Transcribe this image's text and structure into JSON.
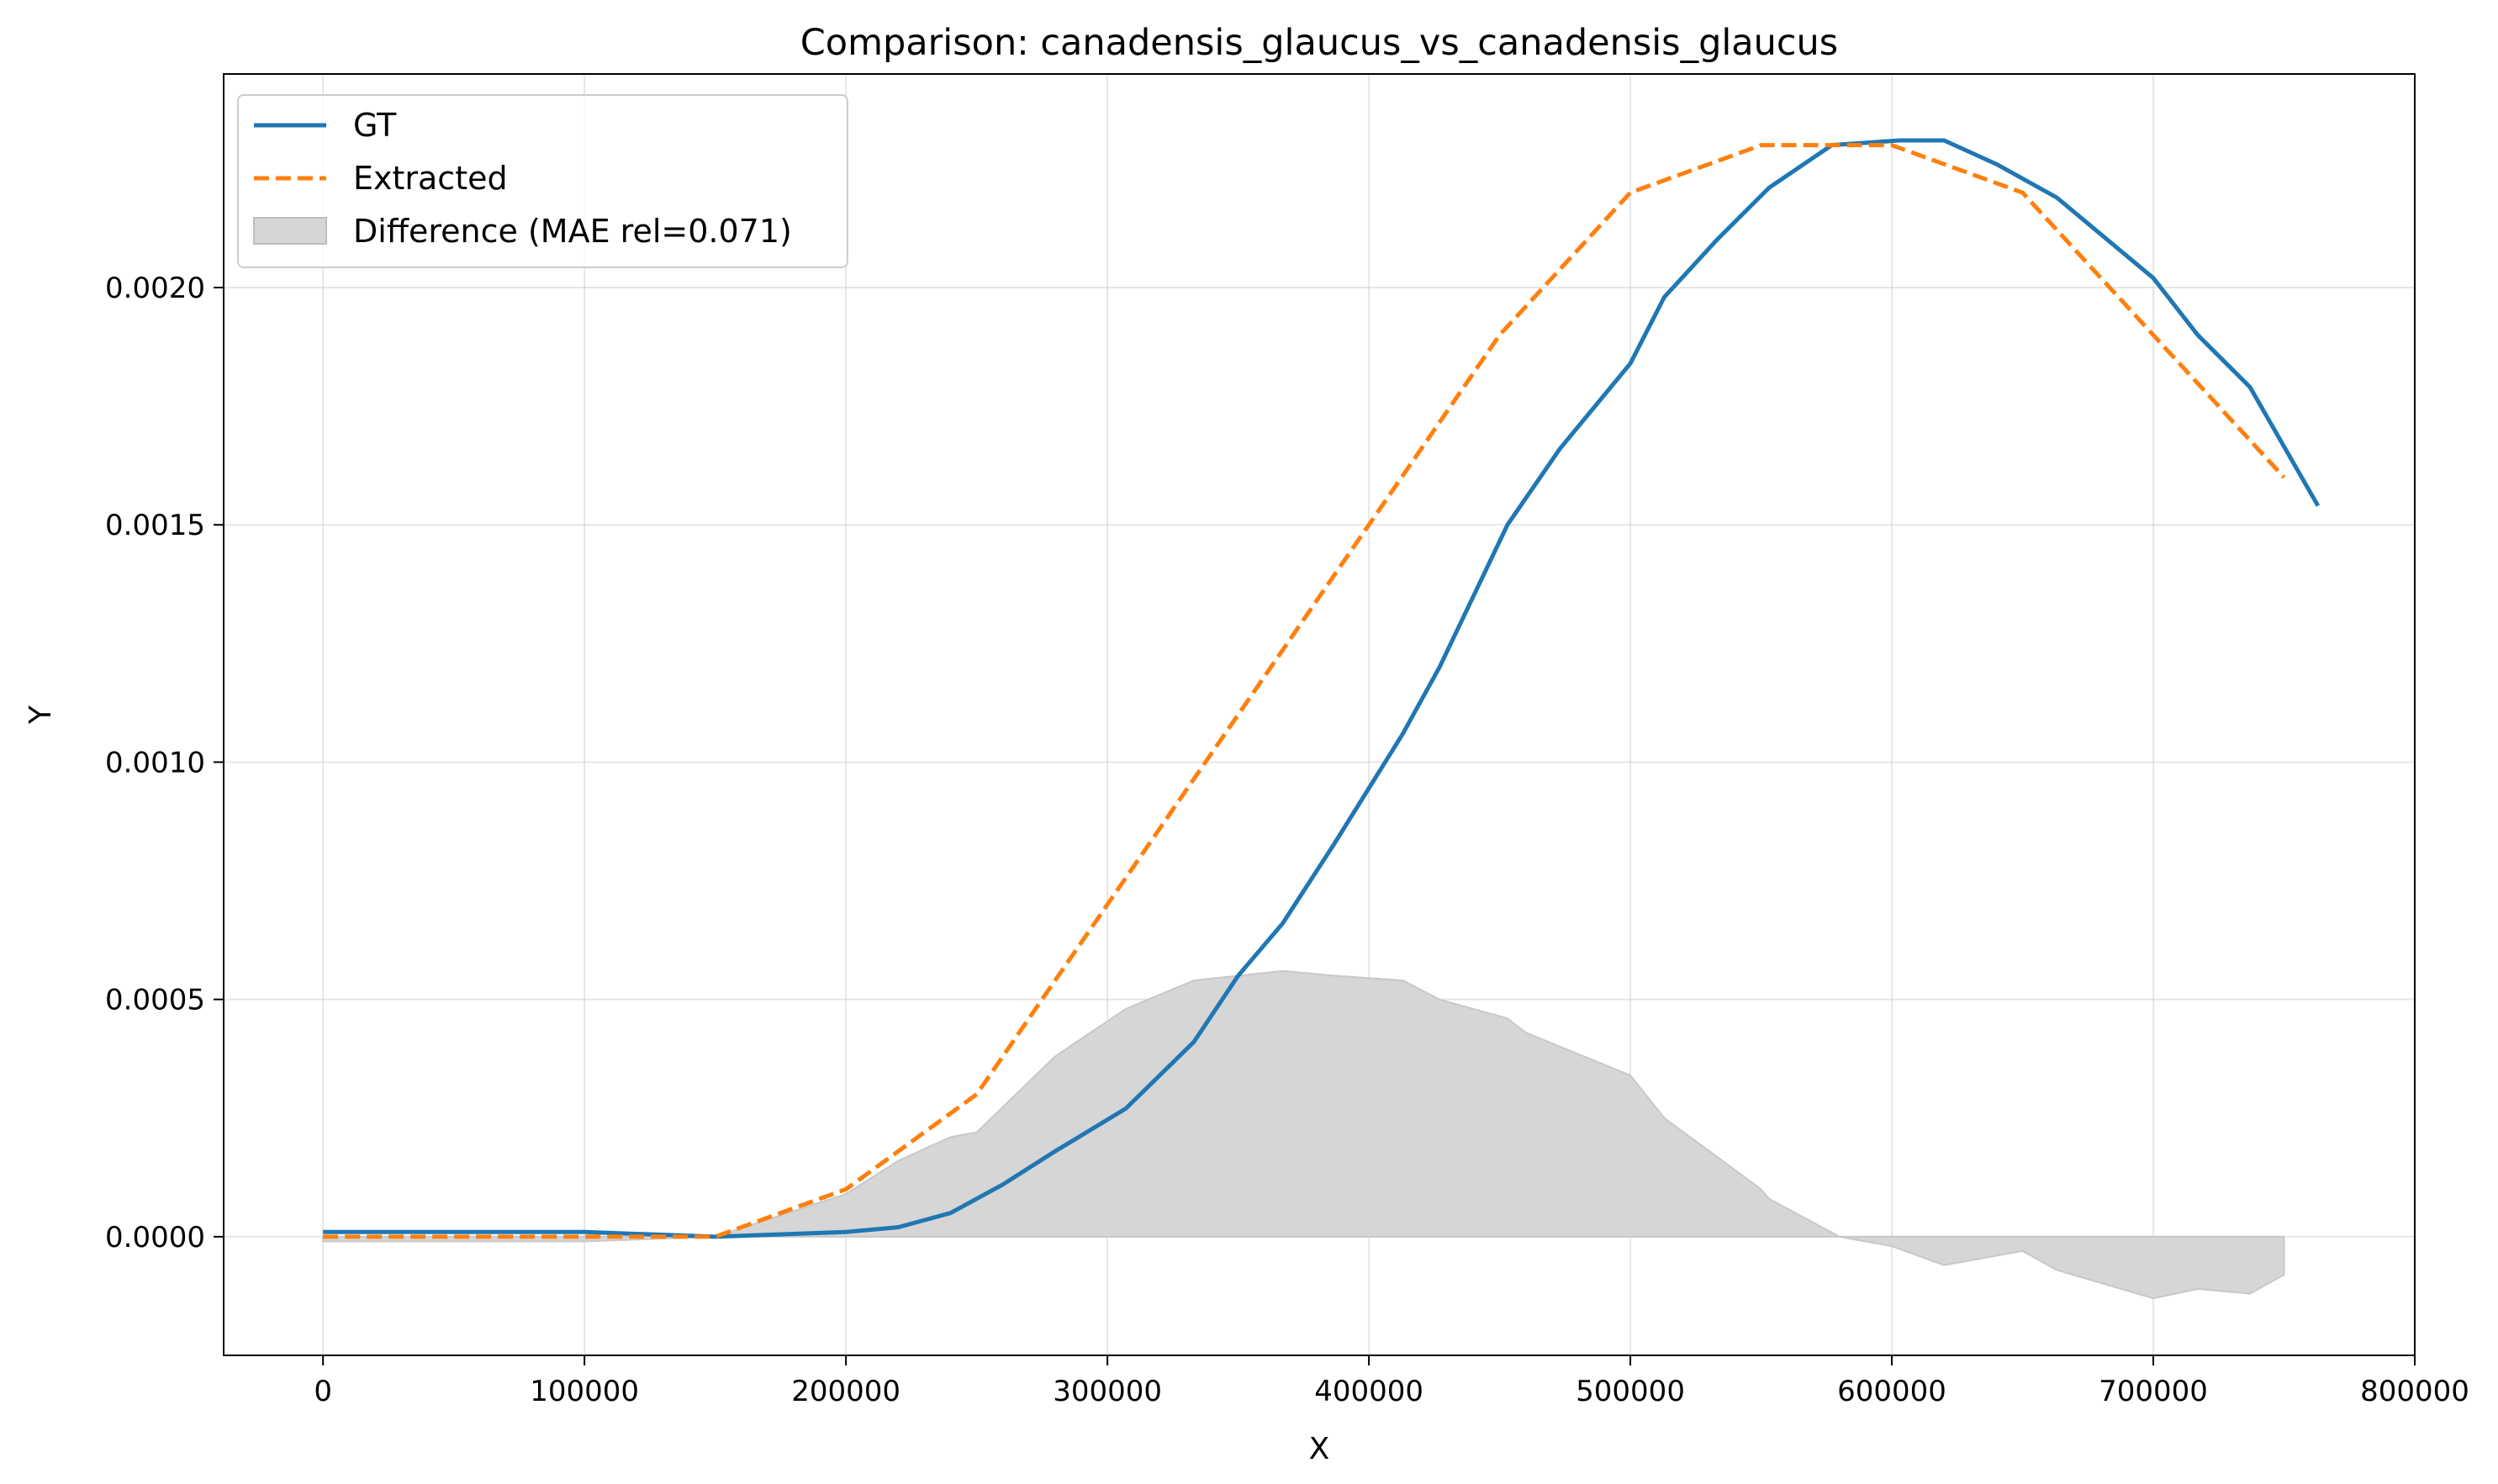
{
  "chart_data": {
    "type": "line",
    "title": "Comparison: canadensis_glaucus_vs_canadensis_glaucus",
    "xlabel": "X",
    "ylabel": "Y",
    "xlim": [
      -38000,
      800000
    ],
    "ylim": [
      -0.00025,
      0.00245
    ],
    "x_ticks": [
      0,
      100000,
      200000,
      300000,
      400000,
      500000,
      600000,
      700000,
      800000
    ],
    "x_tick_labels": [
      "0",
      "100000",
      "200000",
      "300000",
      "400000",
      "500000",
      "600000",
      "700000",
      "800000"
    ],
    "y_ticks": [
      0,
      0.0005,
      0.001,
      0.0015,
      0.002
    ],
    "y_tick_labels": [
      "0.0000",
      "0.0005",
      "0.0010",
      "0.0015",
      "0.0020"
    ],
    "grid": true,
    "legend_position": "upper-left",
    "series": [
      {
        "name": "GT",
        "style": "solid",
        "color": "#1f77b4",
        "x": [
          0,
          100000,
          150000,
          200000,
          220000,
          240000,
          260000,
          280000,
          307000,
          333000,
          350000,
          367000,
          387000,
          413000,
          427000,
          453000,
          473000,
          500000,
          513000,
          533000,
          553000,
          577000,
          603000,
          620000,
          640000,
          663000,
          700000,
          717000,
          737000,
          763000
        ],
        "y": [
          1e-05,
          1e-05,
          0.0,
          1e-05,
          2e-05,
          5e-05,
          0.00011,
          0.00018,
          0.00027,
          0.00041,
          0.00055,
          0.00066,
          0.00083,
          0.00106,
          0.0012,
          0.0015,
          0.00166,
          0.00184,
          0.00198,
          0.0021,
          0.00221,
          0.0023,
          0.00231,
          0.00231,
          0.00226,
          0.00219,
          0.00202,
          0.0019,
          0.00179,
          0.00154
        ]
      },
      {
        "name": "Extracted",
        "style": "dashed",
        "color": "#ff7f0e",
        "x": [
          0,
          100000,
          150000,
          200000,
          250000,
          300000,
          350000,
          400000,
          450000,
          500000,
          550000,
          600000,
          650000,
          700000,
          750000
        ],
        "y": [
          0.0,
          0.0,
          0.0,
          0.0001,
          0.0003,
          0.0007,
          0.0011,
          0.0015,
          0.0019,
          0.0022,
          0.0023,
          0.0023,
          0.0022,
          0.0019,
          0.0016
        ]
      }
    ],
    "difference": {
      "name": "Difference (MAE rel=0.071)",
      "color": "#d6d6d6",
      "x": [
        0,
        100000,
        150000,
        200000,
        220000,
        240000,
        250000,
        280000,
        307000,
        333000,
        367000,
        387000,
        413000,
        427000,
        453000,
        460000,
        500000,
        513000,
        550000,
        553000,
        580000,
        600000,
        620000,
        640000,
        650000,
        663000,
        700000,
        717000,
        737000,
        750000
      ],
      "y": [
        -1e-05,
        -1e-05,
        0.0,
        9e-05,
        0.00016,
        0.00021,
        0.00022,
        0.00038,
        0.00048,
        0.00054,
        0.00056,
        0.00055,
        0.00054,
        0.0005,
        0.00046,
        0.00043,
        0.00034,
        0.00025,
        0.0001,
        8e-05,
        0.0,
        -2e-05,
        -6e-05,
        -4e-05,
        -3e-05,
        -7e-05,
        -0.00013,
        -0.00011,
        -0.00012,
        -8e-05
      ]
    }
  }
}
